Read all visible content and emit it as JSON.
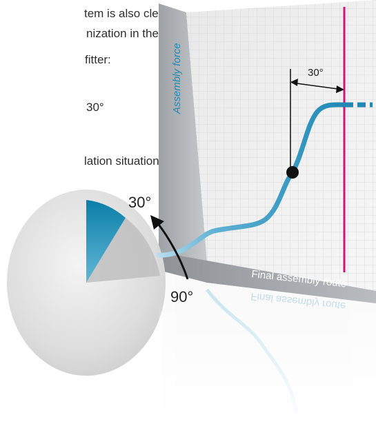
{
  "text_lines": [
    "tem is also clear in",
    "nization in the tube",
    "fitter:",
    "30°",
    "lation situations"
  ],
  "diagram": {
    "y_axis_label": "Assembly force",
    "x_axis_label": "Final assembly route",
    "x_axis_label_reflection": "Final assembly route",
    "span_label": "30°",
    "angle_start_label": "90°",
    "angle_end_label": "30°"
  },
  "colors": {
    "curve": "#1f88b5",
    "curve_dark": "#0e6f98",
    "limit_line": "#d4117c",
    "grid": "#dcdcdc",
    "wedge": "#0a7fa9"
  }
}
